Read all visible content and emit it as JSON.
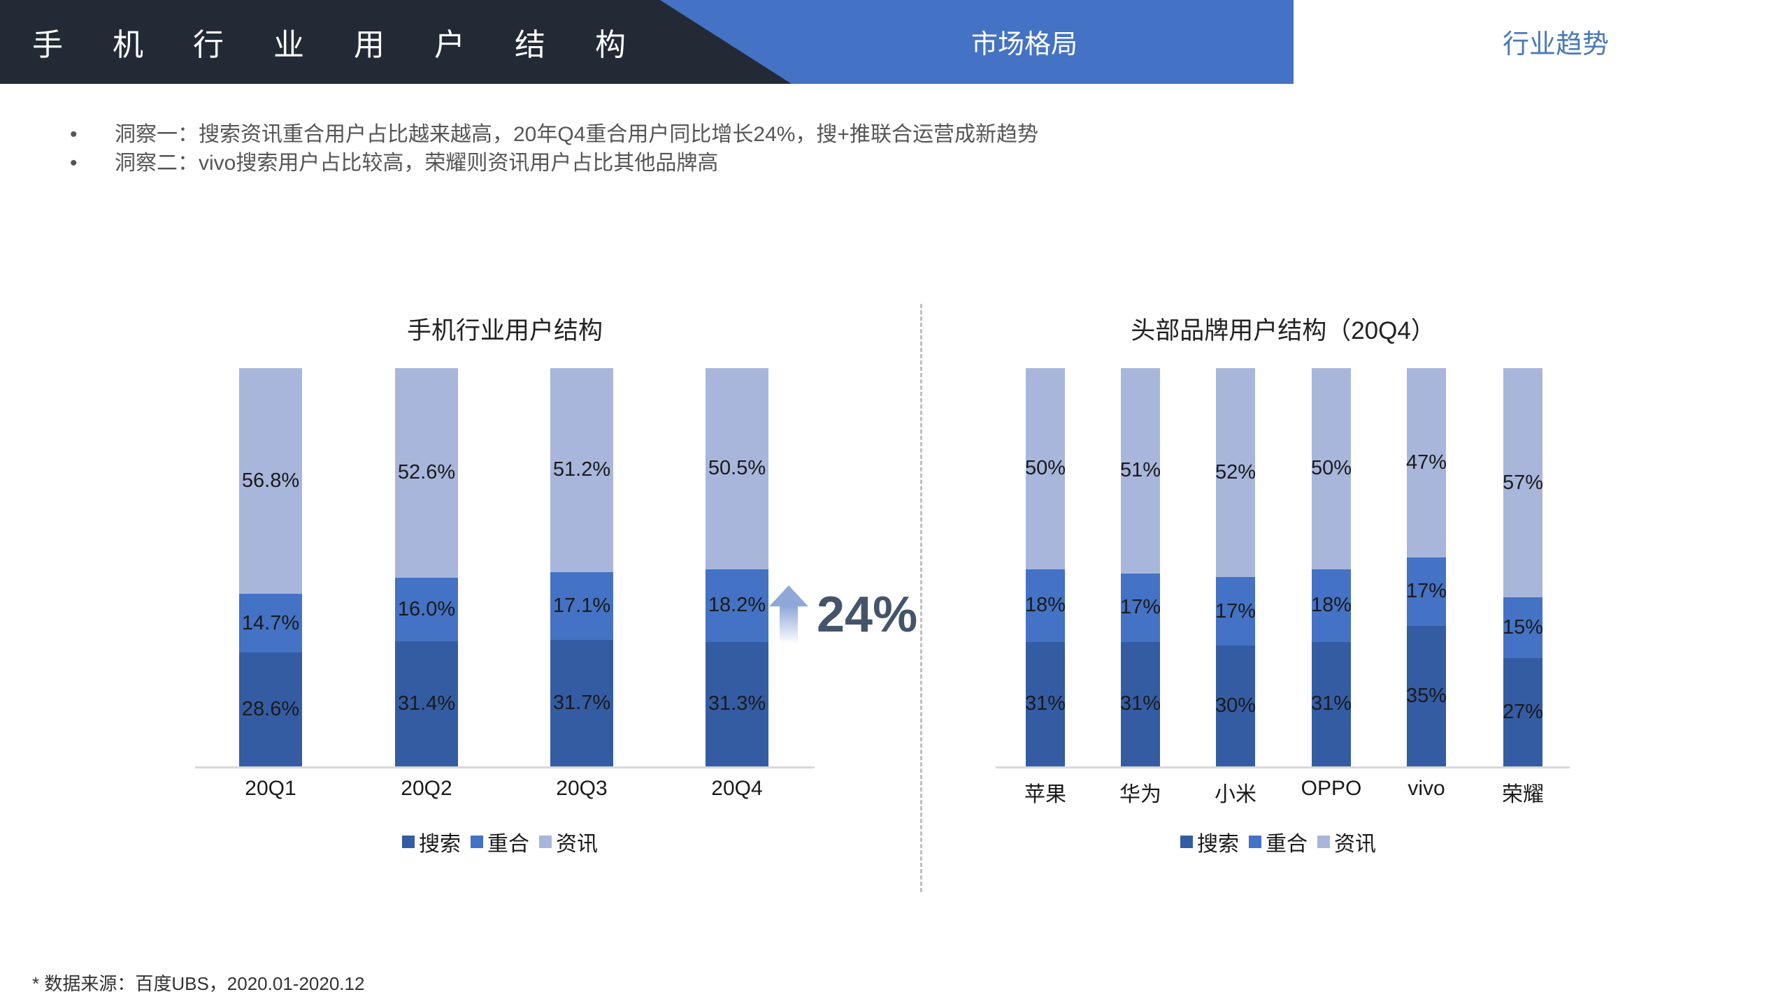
{
  "header": {
    "title_chars": [
      "手",
      "机",
      "行",
      "业",
      "用",
      "户",
      "结",
      "构"
    ],
    "tabs": [
      {
        "label": "市场格局",
        "active": true
      },
      {
        "label": "行业趋势",
        "active": false
      }
    ]
  },
  "insights": [
    {
      "bullet": "•",
      "text": "洞察一：搜索资讯重合用户占比越来越高，20年Q4重合用户同比增长24%，搜+推联合运营成新趋势"
    },
    {
      "bullet": "•",
      "text": "洞察二：vivo搜索用户占比较高，荣耀则资讯用户占比其他品牌高"
    }
  ],
  "growth_annotation": {
    "icon": "up-arrow-icon",
    "value": "24%"
  },
  "legend": [
    {
      "label": "搜索",
      "color": "#345ca3"
    },
    {
      "label": "重合",
      "color": "#4472c4"
    },
    {
      "label": "资讯",
      "color": "#a8b6dc"
    }
  ],
  "footer": {
    "text": "* 数据来源：百度UBS，2020.01-2020.12"
  },
  "chart_data": [
    {
      "type": "bar",
      "stacked": true,
      "title": "手机行业用户结构",
      "categories": [
        "20Q1",
        "20Q2",
        "20Q3",
        "20Q4"
      ],
      "series": [
        {
          "name": "搜索",
          "values": [
            28.6,
            31.4,
            31.7,
            31.3
          ],
          "labels": [
            "28.6%",
            "31.4%",
            "31.7%",
            "31.3%"
          ],
          "color": "#345ca3"
        },
        {
          "name": "重合",
          "values": [
            14.7,
            16.0,
            17.1,
            18.2
          ],
          "labels": [
            "14.7%",
            "16.0%",
            "17.1%",
            "18.2%"
          ],
          "color": "#4472c4"
        },
        {
          "name": "资讯",
          "values": [
            56.8,
            52.6,
            51.2,
            50.5
          ],
          "labels": [
            "56.8%",
            "52.6%",
            "51.2%",
            "50.5%"
          ],
          "color": "#a8b6dc"
        }
      ],
      "xlabel": "",
      "ylabel": "",
      "ylim": [
        0,
        100
      ],
      "grid": false,
      "legend_position": "bottom",
      "annotation": "24%"
    },
    {
      "type": "bar",
      "stacked": true,
      "title": "头部品牌用户结构（20Q4）",
      "categories": [
        "苹果",
        "华为",
        "小米",
        "OPPO",
        "vivo",
        "荣耀"
      ],
      "series": [
        {
          "name": "搜索",
          "values": [
            31,
            31,
            30,
            31,
            35,
            27
          ],
          "labels": [
            "31%",
            "31%",
            "30%",
            "31%",
            "35%",
            "27%"
          ],
          "color": "#345ca3"
        },
        {
          "name": "重合",
          "values": [
            18,
            17,
            17,
            18,
            17,
            15
          ],
          "labels": [
            "18%",
            "17%",
            "17%",
            "18%",
            "17%",
            "15%"
          ],
          "color": "#4472c4"
        },
        {
          "name": "资讯",
          "values": [
            50,
            51,
            52,
            50,
            47,
            57
          ],
          "labels": [
            "50%",
            "51%",
            "52%",
            "50%",
            "47%",
            "57%"
          ],
          "color": "#a8b6dc"
        }
      ],
      "xlabel": "",
      "ylabel": "",
      "ylim": [
        0,
        100
      ],
      "grid": false,
      "legend_position": "bottom"
    }
  ]
}
